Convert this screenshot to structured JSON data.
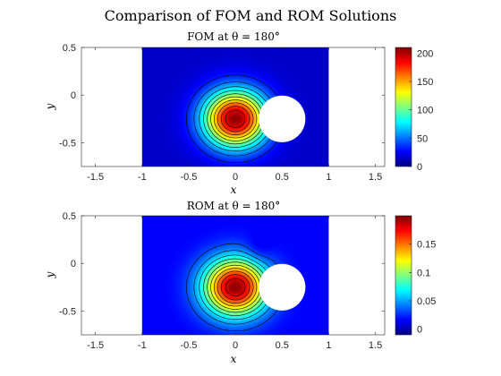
{
  "title": "Comparison of FOM and ROM Solutions",
  "chart_data": [
    {
      "type": "heatmap",
      "title": "FOM at θ = 180°",
      "xlabel": "x",
      "ylabel": "y",
      "xlim": [
        -1.65,
        1.6
      ],
      "ylim": [
        -0.75,
        0.5
      ],
      "x_ticks": [
        "-1.5",
        "-1",
        "-0.5",
        "0",
        "0.5",
        "1",
        "1.5"
      ],
      "x_tick_values": [
        -1.5,
        -1,
        -0.5,
        0,
        0.5,
        1,
        1.5
      ],
      "y_ticks": [
        "0.5",
        "0",
        "-0.5"
      ],
      "y_tick_values": [
        0.5,
        0,
        -0.5
      ],
      "domain_x": [
        -1,
        1
      ],
      "domain_y": [
        -0.75,
        0.5
      ],
      "peak": {
        "x": 0,
        "y": -0.25,
        "value": 210
      },
      "obstacle": {
        "cx": 0.5,
        "cy": -0.25,
        "r": 0.25
      },
      "colorbar": {
        "min": 0,
        "max": 210,
        "ticks": [
          "200",
          "150",
          "100",
          "50",
          "0"
        ],
        "tick_values": [
          200,
          150,
          100,
          50,
          0
        ]
      },
      "colormap": "jet",
      "contour_count": 10
    },
    {
      "type": "heatmap",
      "title": "ROM at θ = 180°",
      "xlabel": "x",
      "ylabel": "y",
      "xlim": [
        -1.65,
        1.6
      ],
      "ylim": [
        -0.75,
        0.5
      ],
      "x_ticks": [
        "-1.5",
        "-1",
        "-0.5",
        "0",
        "0.5",
        "1",
        "1.5"
      ],
      "x_tick_values": [
        -1.5,
        -1,
        -0.5,
        0,
        0.5,
        1,
        1.5
      ],
      "y_ticks": [
        "0.5",
        "0",
        "-0.5"
      ],
      "y_tick_values": [
        0.5,
        0,
        -0.5
      ],
      "domain_x": [
        -1,
        1
      ],
      "domain_y": [
        -0.75,
        0.5
      ],
      "peak": {
        "x": 0,
        "y": -0.25,
        "value": 0.2
      },
      "obstacle": {
        "cx": 0.5,
        "cy": -0.25,
        "r": 0.25
      },
      "colorbar": {
        "min": -0.01,
        "max": 0.2,
        "ticks": [
          "0.15",
          "0.1",
          "0.05",
          "0"
        ],
        "tick_values": [
          0.15,
          0.1,
          0.05,
          0
        ]
      },
      "colormap": "jet",
      "contour_count": 10
    }
  ]
}
